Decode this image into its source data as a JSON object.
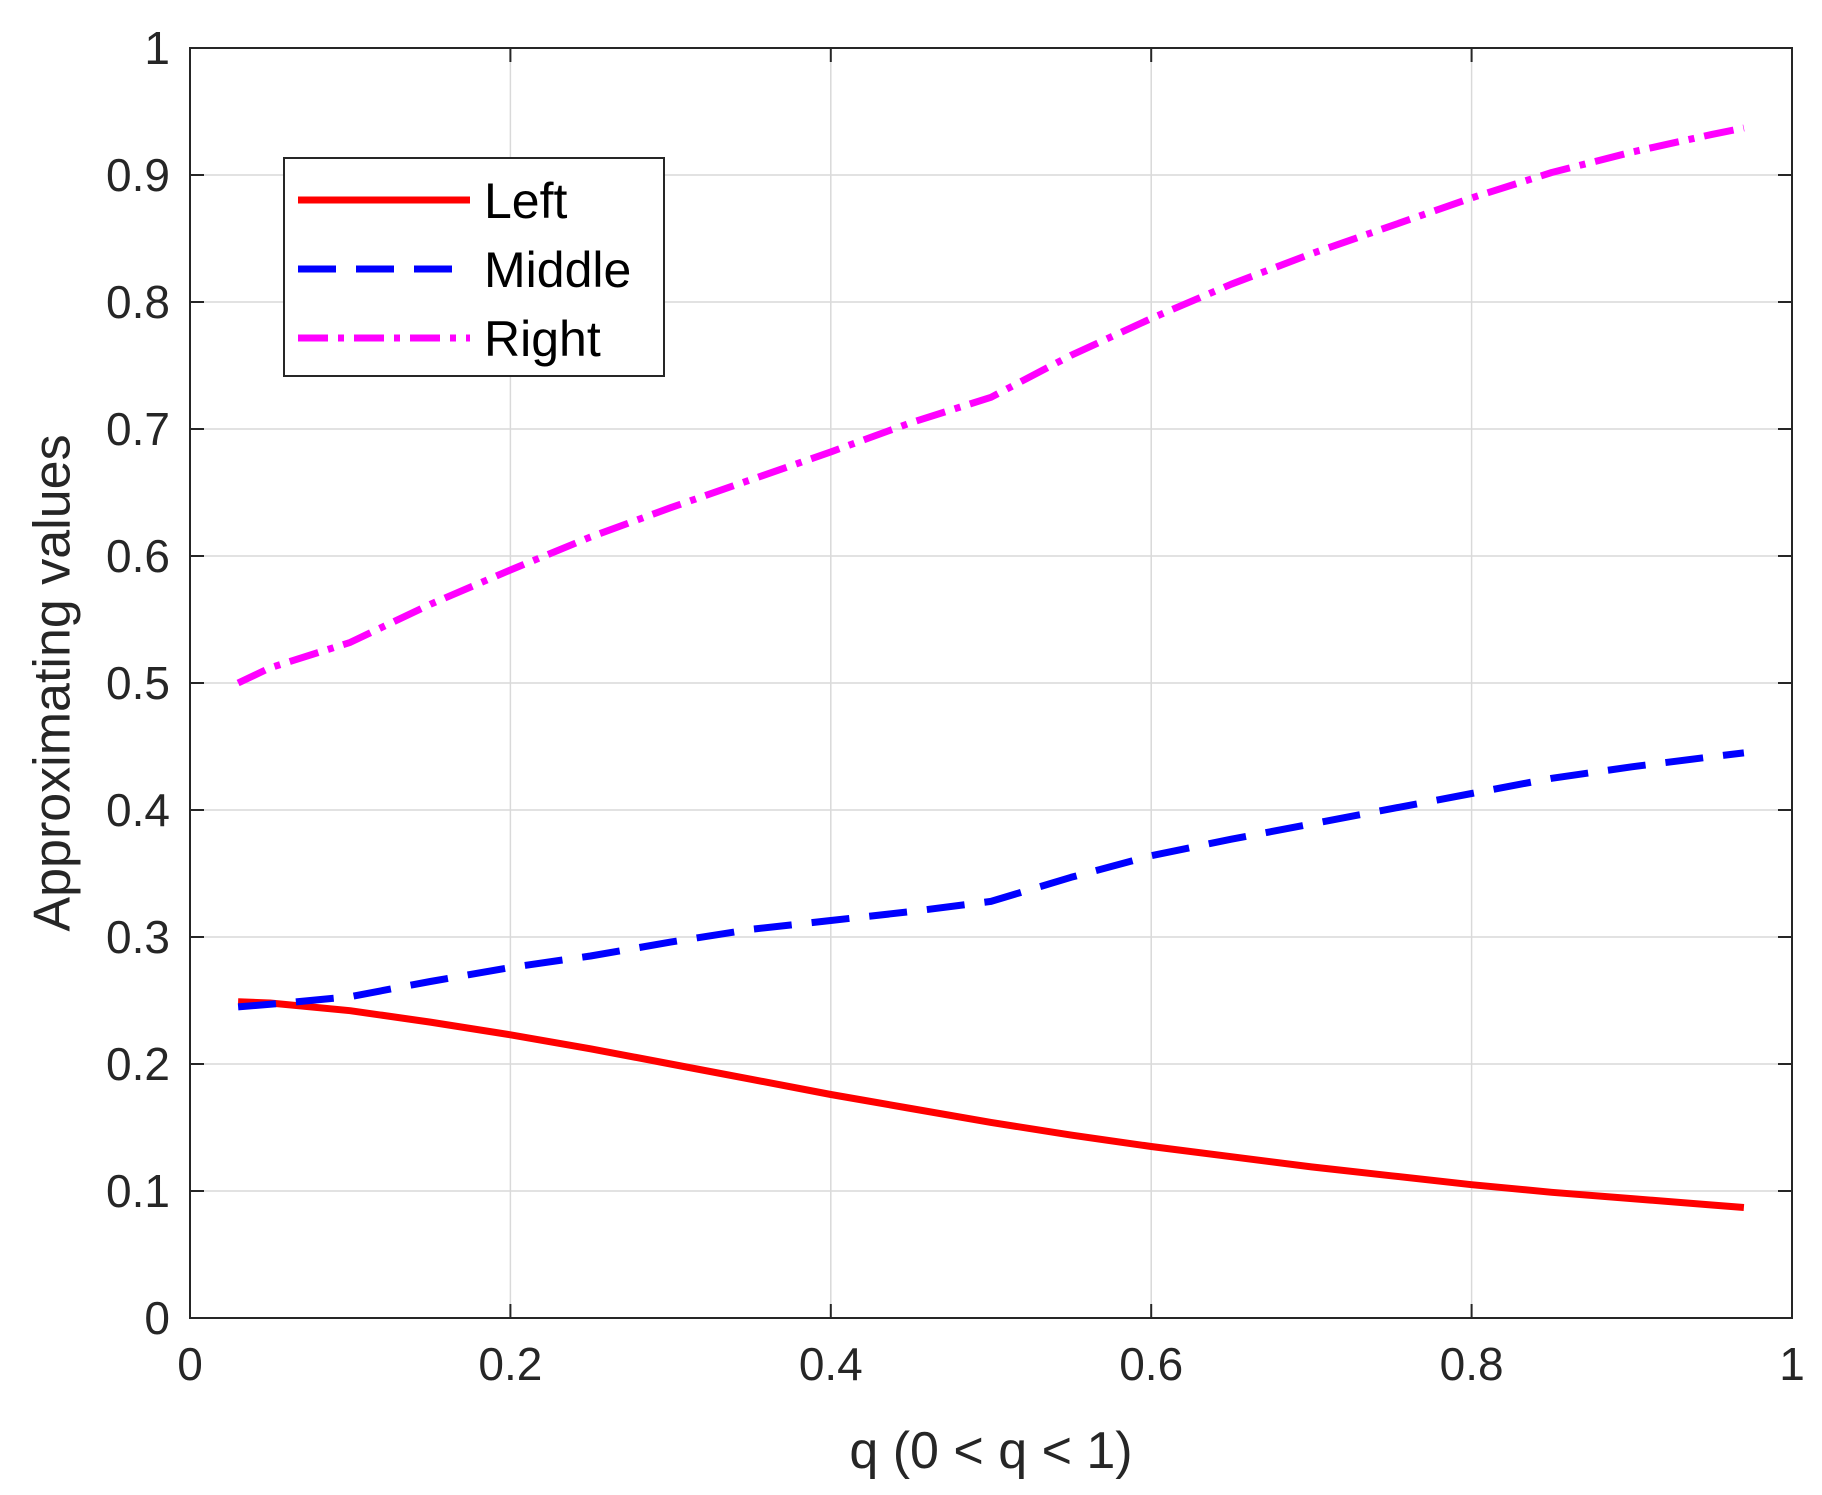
{
  "chart_data": {
    "type": "line",
    "xlabel": "q (0 < q < 1)",
    "ylabel": "Approximating values",
    "xlim": [
      0,
      1
    ],
    "ylim": [
      0,
      1
    ],
    "xticks": [
      0,
      0.2,
      0.4,
      0.6,
      0.8,
      1
    ],
    "xtick_labels": [
      "0",
      "0.2",
      "0.4",
      "0.6",
      "0.8",
      "1"
    ],
    "yticks": [
      0,
      0.1,
      0.2,
      0.3,
      0.4,
      0.5,
      0.6,
      0.7,
      0.8,
      0.9,
      1
    ],
    "ytick_labels": [
      "0",
      "0.1",
      "0.2",
      "0.3",
      "0.4",
      "0.5",
      "0.6",
      "0.7",
      "0.8",
      "0.9",
      "1"
    ],
    "grid": true,
    "legend_position": "top-left",
    "x": [
      0.03,
      0.05,
      0.1,
      0.15,
      0.2,
      0.25,
      0.3,
      0.35,
      0.4,
      0.45,
      0.5,
      0.55,
      0.6,
      0.65,
      0.7,
      0.75,
      0.8,
      0.85,
      0.9,
      0.95,
      0.97
    ],
    "series": [
      {
        "name": "Left",
        "color": "#ff0000",
        "style": "solid",
        "values": [
          0.249,
          0.248,
          0.242,
          0.233,
          0.223,
          0.212,
          0.2,
          0.188,
          0.176,
          0.165,
          0.154,
          0.144,
          0.135,
          0.127,
          0.119,
          0.112,
          0.105,
          0.099,
          0.094,
          0.089,
          0.087
        ]
      },
      {
        "name": "Middle",
        "color": "#0000ff",
        "style": "dashed",
        "values": [
          0.245,
          0.247,
          0.253,
          0.265,
          0.276,
          0.285,
          0.296,
          0.306,
          0.313,
          0.32,
          0.328,
          0.347,
          0.364,
          0.377,
          0.389,
          0.401,
          0.413,
          0.425,
          0.434,
          0.442,
          0.445
        ]
      },
      {
        "name": "Right",
        "color": "#ff00ff",
        "style": "dash-dot",
        "values": [
          0.5,
          0.512,
          0.532,
          0.562,
          0.589,
          0.615,
          0.638,
          0.66,
          0.682,
          0.705,
          0.725,
          0.758,
          0.787,
          0.814,
          0.838,
          0.86,
          0.882,
          0.902,
          0.918,
          0.932,
          0.937
        ]
      }
    ]
  }
}
